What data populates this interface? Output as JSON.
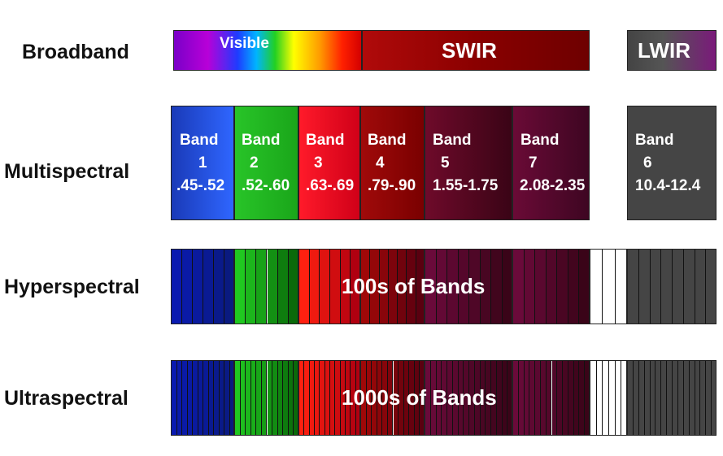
{
  "rows": {
    "broadband": "Broadband",
    "multispectral": "Multispectral",
    "hyperspectral": "Hyperspectral",
    "ultraspectral": "Ultraspectral"
  },
  "broadband": {
    "visible": "Visible",
    "swir": "SWIR",
    "lwir": "LWIR"
  },
  "bands": [
    {
      "label": "Band",
      "num": "1",
      "range": ".45-.52"
    },
    {
      "label": "Band",
      "num": "2",
      "range": ".52-.60"
    },
    {
      "label": "Band",
      "num": "3",
      "range": ".63-.69"
    },
    {
      "label": "Band",
      "num": "4",
      "range": ".79-.90"
    },
    {
      "label": "Band",
      "num": "5",
      "range": "1.55-1.75"
    },
    {
      "label": "Band",
      "num": "7",
      "range": "2.08-2.35"
    },
    {
      "label": "Band",
      "num": "6",
      "range": "10.4-12.4"
    }
  ],
  "hyper_caption": "100s of Bands",
  "ultra_caption": "1000s of Bands",
  "colors": {
    "blue": "#1a3fd6",
    "green": "#22b522",
    "red": "#e8102a",
    "maroon": "#8a0a0a",
    "purple": "#5e0a2e",
    "gray": "#4a4a4a",
    "lwir_purple": "#7a1a7a"
  }
}
